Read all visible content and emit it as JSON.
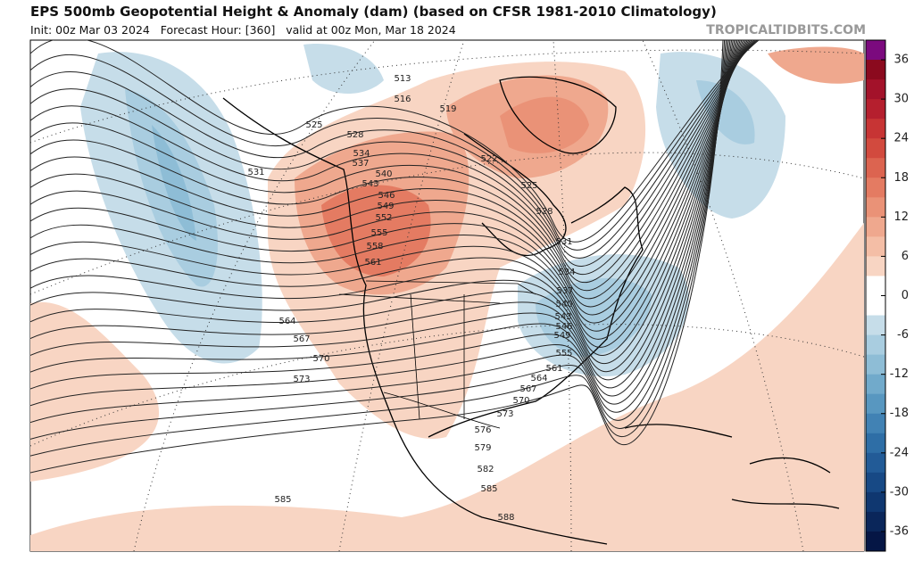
{
  "header": {
    "title": "EPS 500mb Geopotential Height & Anomaly (dam) (based on CFSR 1981-2010 Climatology)",
    "subtitle": "Init: 00z Mar 03 2024   Forecast Hour: [360]   valid at 00z Mon, Mar 18 2024",
    "watermark": "TROPICALTIDBITS.COM"
  },
  "contour_labels": [
    513,
    516,
    519,
    522,
    525,
    525,
    528,
    528,
    531,
    531,
    534,
    534,
    537,
    537,
    540,
    540,
    543,
    543,
    546,
    546,
    549,
    549,
    552,
    555,
    555,
    558,
    561,
    561,
    564,
    564,
    567,
    567,
    570,
    570,
    573,
    573,
    576,
    579,
    582,
    585,
    585,
    588
  ],
  "colorbar": {
    "lim": [
      -39,
      39
    ],
    "ticks": [
      36,
      30,
      24,
      18,
      12,
      6,
      0,
      -6,
      -12,
      -18,
      -24,
      -30,
      -36
    ],
    "colors": [
      "#7b0a7e",
      "#8b0a1e",
      "#a3122a",
      "#b51f2e",
      "#c73434",
      "#d24a3e",
      "#dc6450",
      "#e47b62",
      "#ea9277",
      "#efa88e",
      "#f4bea6",
      "#f8d5c3",
      "#ffffff",
      "#ffffff",
      "#c6dde9",
      "#a9cde0",
      "#8ebdd6",
      "#71aacb",
      "#5897c0",
      "#4182b4",
      "#2e6ea6",
      "#225b97",
      "#174985",
      "#0f3770",
      "#0a265a",
      "#051645"
    ]
  }
}
